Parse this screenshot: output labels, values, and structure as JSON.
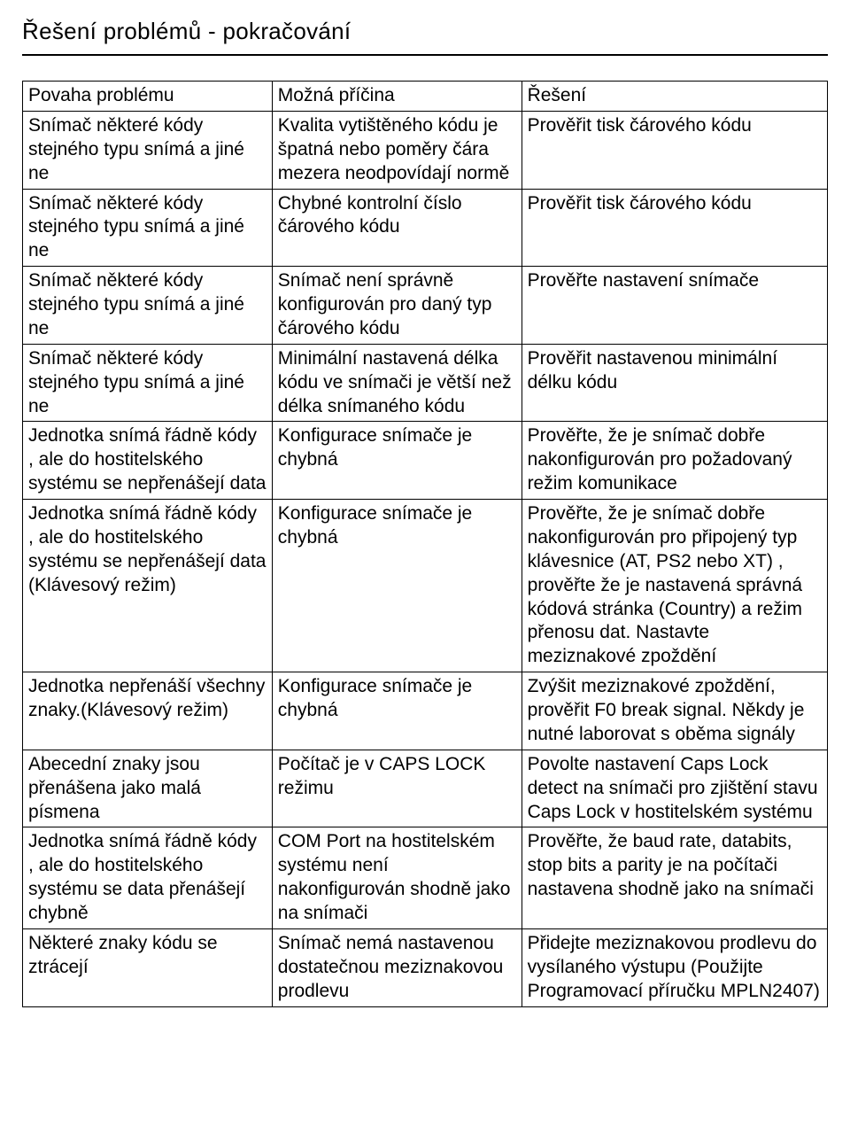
{
  "heading": "Řešení problémů - pokračování",
  "table": {
    "columns": [
      "Povaha problému",
      "Možná příčina",
      "Řešení"
    ],
    "rows": [
      [
        "Snímač některé kódy stejného typu snímá a jiné ne",
        "Kvalita vytištěného kódu je špatná nebo poměry čára mezera neodpovídají normě",
        "Prověřit tisk čárového kódu"
      ],
      [
        "Snímač některé kódy stejného typu snímá a jiné ne",
        "Chybné kontrolní číslo čárového kódu",
        "Prověřit tisk čárového kódu"
      ],
      [
        "Snímač některé kódy stejného typu snímá a jiné ne",
        "Snímač není správně konfigurován pro daný typ čárového kódu",
        "Prověřte nastavení snímače"
      ],
      [
        "Snímač některé kódy stejného typu snímá a jiné ne",
        "Minimální nastavená délka kódu ve snímači je větší než délka snímaného kódu",
        "Prověřit nastavenou minimální délku kódu"
      ],
      [
        "Jednotka snímá řádně kódy , ale do hostitelského systému se nepřenášejí data",
        "Konfigurace snímače je chybná",
        "Prověřte, že je snímač dobře nakonfigurován pro požadovaný režim komunikace"
      ],
      [
        "Jednotka snímá řádně kódy , ale do hostitelského systému se nepřenášejí data (Klávesový režim)",
        "Konfigurace snímače je chybná",
        "Prověřte, že je snímač dobře nakonfigurován pro připojený typ klávesnice (AT, PS2 nebo XT) , prověřte že je nastavená správná kódová stránka (Country) a režim přenosu dat. Nastavte meziznakové zpoždění"
      ],
      [
        "Jednotka nepřenáší všechny znaky.(Klávesový režim)",
        "Konfigurace snímače je chybná",
        "Zvýšit meziznakové zpoždění, prověřit F0 break signal. Někdy je nutné laborovat s oběma signály"
      ],
      [
        "Abecední znaky jsou přenášena jako malá písmena",
        "Počítač je v CAPS LOCK režimu",
        "Povolte nastavení Caps Lock detect na snímači pro zjištění stavu Caps Lock v hostitelském systému"
      ],
      [
        "Jednotka snímá řádně kódy , ale do hostitelského systému se data přenášejí chybně",
        "COM Port na hostitelském systému není nakonfigurován shodně jako na snímači",
        "Prověřte, že baud rate, databits, stop bits a parity je na počítači nastavena shodně jako na snímači"
      ],
      [
        "Některé znaky kódu se ztrácejí",
        "Snímač nemá nastavenou dostatečnou meziznakovou prodlevu",
        "Přidejte meziznakovou prodlevu do vysílaného výstupu (Použijte Programovací příručku MPLN2407)"
      ]
    ]
  }
}
